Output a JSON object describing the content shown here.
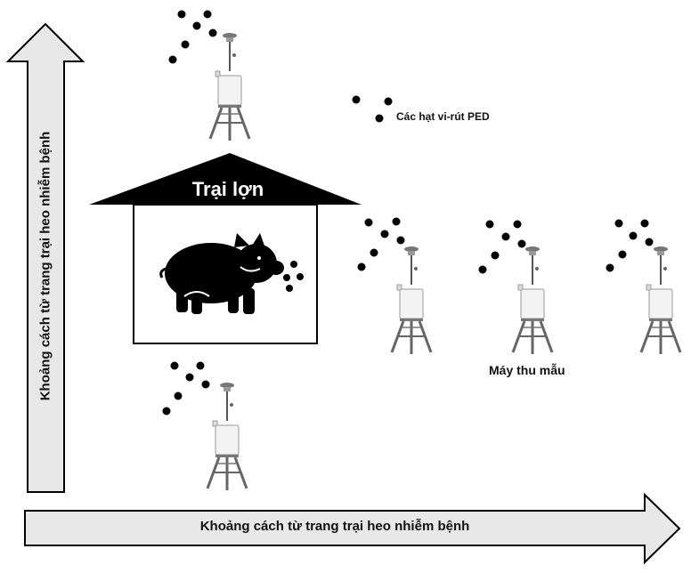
{
  "labels": {
    "farm": "Trại lợn",
    "particles": "Các hạt vi-rút PED",
    "sampler": "Máy thu mẫu",
    "x_axis": "Khoảng cách từ trang trại heo nhiễm bệnh",
    "y_axis": "Khoảng cách từ trang trại heo nhiễm bệnh"
  },
  "icons": {
    "sampler": "air-sampler-icon",
    "pig": "pig-icon",
    "particle": "virus-particle-dot"
  },
  "colors": {
    "arrow_fill": "#e8e8e8",
    "outline": "#000000",
    "roof": "#000000",
    "sampler_body": "#f3f3f3"
  }
}
